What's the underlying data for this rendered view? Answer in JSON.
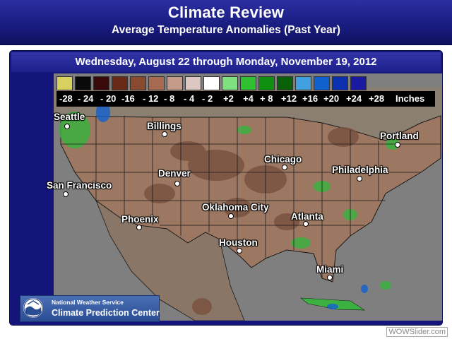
{
  "header": {
    "title": "Climate Review",
    "subtitle": "Average Temperature Anomalies (Past Year)"
  },
  "date_banner": "Wednesday, August 22 through Monday, November 19, 2012",
  "legend": {
    "labels": [
      "-28",
      "- 24",
      "- 20",
      "-16",
      "- 12",
      "- 8",
      "- 4",
      "- 2",
      "+2",
      "+4",
      "+ 8",
      "+12",
      "+16",
      "+20",
      "+24",
      "+28"
    ],
    "unit": "Inches",
    "colors": [
      "#d8d060",
      "#0a0a0a",
      "#3a0a0a",
      "#6a2a18",
      "#8a4a30",
      "#a86a50",
      "#c49a88",
      "#dcc8c0",
      "#ffffff",
      "#80e080",
      "#30c030",
      "#109010",
      "#086008",
      "#40a0e0",
      "#1060d0",
      "#0a30b0",
      "#1a1aa0"
    ]
  },
  "map": {
    "background_color": "#7f7f7f",
    "land_color": "#9c7862",
    "dry_color": "#7a5240",
    "wet_color": "#3cb040",
    "border_color": "#1a1a1a"
  },
  "cities": [
    {
      "name": "Seattle"
    },
    {
      "name": "Billings"
    },
    {
      "name": "Portland"
    },
    {
      "name": "Chicago"
    },
    {
      "name": "Philadelphia"
    },
    {
      "name": "Denver"
    },
    {
      "name": "San Francisco"
    },
    {
      "name": "Oklahoma City"
    },
    {
      "name": "Atlanta"
    },
    {
      "name": "Phoenix"
    },
    {
      "name": "Houston"
    },
    {
      "name": "Miami"
    }
  ],
  "credit": {
    "line1": "National Weather Service",
    "line2": "Climate Prediction Center",
    "logo": "noaa-logo"
  },
  "watermark": "WOWSlider.com"
}
